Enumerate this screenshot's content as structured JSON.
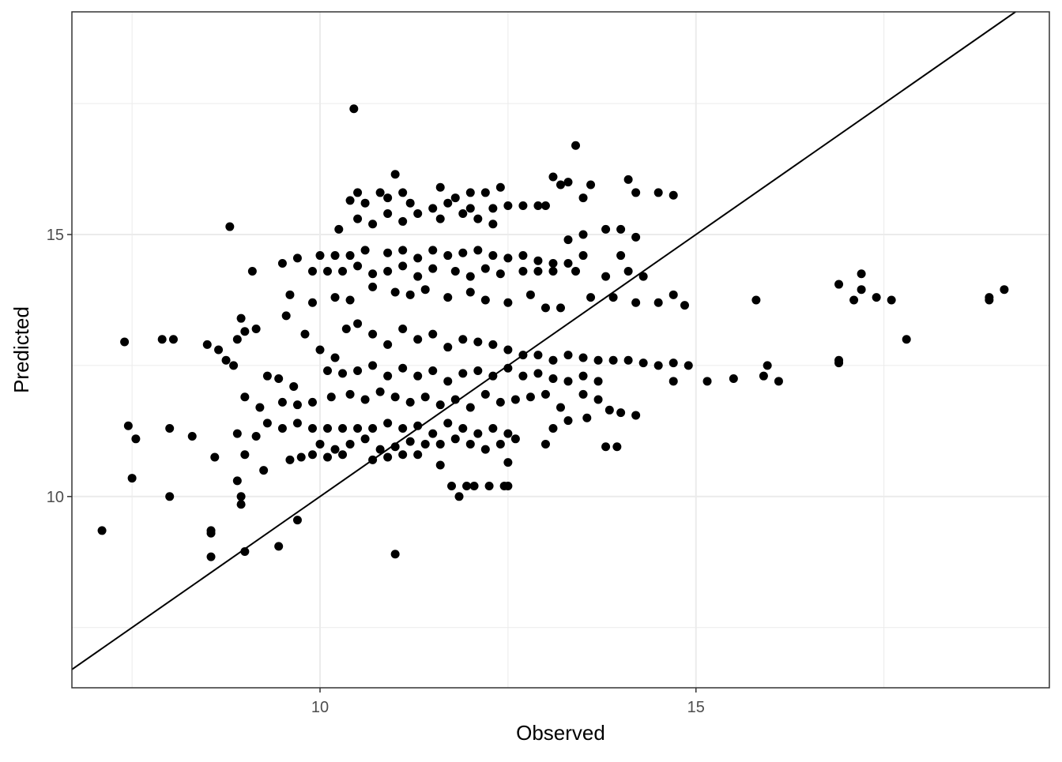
{
  "chart_data": {
    "type": "scatter",
    "xlabel": "Observed",
    "ylabel": "Predicted",
    "xlim": [
      6.7,
      19.7
    ],
    "ylim": [
      6.35,
      19.25
    ],
    "x_ticks": [
      10,
      15
    ],
    "y_ticks": [
      10,
      15
    ],
    "x_minor_gridlines": [
      7.5,
      12.5,
      17.5
    ],
    "y_minor_gridlines": [
      7.5,
      12.5,
      17.5
    ],
    "grid": true,
    "reference_line": {
      "type": "identity",
      "slope": 1,
      "intercept": 0
    },
    "colors": {
      "points": "#000000",
      "grid": "#ebebeb",
      "panel_border": "#333333",
      "axis_text": "#4d4d4d",
      "title_text": "#000000"
    },
    "x_tick_labels": [
      "10",
      "15"
    ],
    "y_tick_labels": [
      "10",
      "15"
    ],
    "points": [
      [
        10.45,
        17.4
      ],
      [
        13.4,
        16.7
      ],
      [
        11.0,
        16.15
      ],
      [
        13.1,
        16.1
      ],
      [
        13.2,
        15.95
      ],
      [
        13.3,
        16.0
      ],
      [
        13.6,
        15.95
      ],
      [
        14.1,
        16.05
      ],
      [
        10.5,
        15.8
      ],
      [
        10.8,
        15.8
      ],
      [
        11.1,
        15.8
      ],
      [
        11.6,
        15.9
      ],
      [
        11.8,
        15.7
      ],
      [
        12.0,
        15.8
      ],
      [
        12.2,
        15.8
      ],
      [
        12.4,
        15.9
      ],
      [
        13.5,
        15.7
      ],
      [
        14.2,
        15.8
      ],
      [
        14.5,
        15.8
      ],
      [
        14.7,
        15.75
      ],
      [
        10.4,
        15.65
      ],
      [
        10.6,
        15.6
      ],
      [
        10.9,
        15.7
      ],
      [
        11.2,
        15.6
      ],
      [
        11.5,
        15.5
      ],
      [
        11.7,
        15.6
      ],
      [
        12.0,
        15.5
      ],
      [
        12.3,
        15.5
      ],
      [
        12.5,
        15.55
      ],
      [
        12.7,
        15.55
      ],
      [
        12.9,
        15.55
      ],
      [
        13.0,
        15.55
      ],
      [
        8.8,
        15.15
      ],
      [
        10.25,
        15.1
      ],
      [
        10.5,
        15.3
      ],
      [
        10.7,
        15.2
      ],
      [
        10.9,
        15.4
      ],
      [
        11.1,
        15.25
      ],
      [
        11.3,
        15.4
      ],
      [
        11.6,
        15.3
      ],
      [
        11.9,
        15.4
      ],
      [
        12.1,
        15.3
      ],
      [
        12.3,
        15.2
      ],
      [
        13.3,
        14.9
      ],
      [
        13.5,
        15.0
      ],
      [
        13.8,
        15.1
      ],
      [
        14.0,
        15.1
      ],
      [
        14.2,
        14.95
      ],
      [
        10.0,
        14.6
      ],
      [
        10.2,
        14.6
      ],
      [
        10.4,
        14.6
      ],
      [
        10.6,
        14.7
      ],
      [
        10.9,
        14.65
      ],
      [
        11.1,
        14.7
      ],
      [
        11.3,
        14.55
      ],
      [
        11.5,
        14.7
      ],
      [
        11.7,
        14.6
      ],
      [
        11.9,
        14.65
      ],
      [
        12.1,
        14.7
      ],
      [
        12.3,
        14.6
      ],
      [
        12.5,
        14.55
      ],
      [
        12.7,
        14.6
      ],
      [
        12.9,
        14.5
      ],
      [
        13.1,
        14.45
      ],
      [
        13.3,
        14.45
      ],
      [
        13.5,
        14.6
      ],
      [
        14.0,
        14.6
      ],
      [
        9.5,
        14.45
      ],
      [
        9.7,
        14.55
      ],
      [
        9.9,
        14.3
      ],
      [
        10.1,
        14.3
      ],
      [
        10.3,
        14.3
      ],
      [
        10.5,
        14.4
      ],
      [
        10.7,
        14.25
      ],
      [
        10.9,
        14.3
      ],
      [
        11.1,
        14.4
      ],
      [
        11.3,
        14.2
      ],
      [
        11.5,
        14.35
      ],
      [
        11.8,
        14.3
      ],
      [
        12.0,
        14.2
      ],
      [
        12.2,
        14.35
      ],
      [
        12.4,
        14.25
      ],
      [
        12.7,
        14.3
      ],
      [
        12.9,
        14.3
      ],
      [
        13.1,
        14.3
      ],
      [
        13.4,
        14.3
      ],
      [
        13.8,
        14.2
      ],
      [
        14.1,
        14.3
      ],
      [
        14.3,
        14.2
      ],
      [
        9.1,
        14.3
      ],
      [
        9.6,
        13.85
      ],
      [
        9.9,
        13.7
      ],
      [
        10.2,
        13.8
      ],
      [
        10.4,
        13.75
      ],
      [
        10.7,
        14.0
      ],
      [
        11.0,
        13.9
      ],
      [
        11.2,
        13.85
      ],
      [
        11.4,
        13.95
      ],
      [
        11.7,
        13.8
      ],
      [
        12.0,
        13.9
      ],
      [
        12.2,
        13.75
      ],
      [
        12.5,
        13.7
      ],
      [
        12.8,
        13.85
      ],
      [
        13.0,
        13.6
      ],
      [
        13.2,
        13.6
      ],
      [
        13.6,
        13.8
      ],
      [
        13.9,
        13.8
      ],
      [
        14.2,
        13.7
      ],
      [
        14.5,
        13.7
      ],
      [
        14.7,
        13.85
      ],
      [
        14.85,
        13.65
      ],
      [
        15.8,
        13.75
      ],
      [
        16.9,
        14.05
      ],
      [
        17.1,
        13.75
      ],
      [
        17.2,
        14.25
      ],
      [
        17.2,
        13.95
      ],
      [
        17.4,
        13.8
      ],
      [
        17.6,
        13.75
      ],
      [
        18.9,
        13.75
      ],
      [
        18.9,
        13.8
      ],
      [
        19.1,
        13.95
      ],
      [
        17.8,
        13.0
      ],
      [
        7.4,
        12.95
      ],
      [
        7.9,
        13.0
      ],
      [
        8.05,
        13.0
      ],
      [
        8.5,
        12.9
      ],
      [
        8.65,
        12.8
      ],
      [
        8.75,
        12.6
      ],
      [
        8.9,
        13.0
      ],
      [
        9.0,
        13.15
      ],
      [
        8.95,
        13.4
      ],
      [
        9.15,
        13.2
      ],
      [
        9.55,
        13.45
      ],
      [
        8.85,
        12.5
      ],
      [
        9.8,
        13.1
      ],
      [
        10.0,
        12.8
      ],
      [
        10.2,
        12.65
      ],
      [
        10.35,
        13.2
      ],
      [
        10.5,
        13.3
      ],
      [
        10.7,
        13.1
      ],
      [
        10.9,
        12.9
      ],
      [
        11.1,
        13.2
      ],
      [
        11.3,
        13.0
      ],
      [
        11.5,
        13.1
      ],
      [
        11.7,
        12.85
      ],
      [
        11.9,
        13.0
      ],
      [
        12.1,
        12.95
      ],
      [
        12.3,
        12.9
      ],
      [
        12.5,
        12.8
      ],
      [
        12.7,
        12.7
      ],
      [
        12.9,
        12.7
      ],
      [
        13.1,
        12.6
      ],
      [
        13.3,
        12.7
      ],
      [
        13.5,
        12.65
      ],
      [
        13.7,
        12.6
      ],
      [
        13.9,
        12.6
      ],
      [
        14.1,
        12.6
      ],
      [
        14.3,
        12.55
      ],
      [
        14.5,
        12.5
      ],
      [
        14.7,
        12.55
      ],
      [
        14.9,
        12.5
      ],
      [
        10.1,
        12.4
      ],
      [
        10.3,
        12.35
      ],
      [
        10.5,
        12.4
      ],
      [
        10.7,
        12.5
      ],
      [
        10.9,
        12.3
      ],
      [
        11.1,
        12.45
      ],
      [
        11.3,
        12.3
      ],
      [
        11.5,
        12.4
      ],
      [
        11.7,
        12.2
      ],
      [
        11.9,
        12.35
      ],
      [
        12.1,
        12.4
      ],
      [
        12.3,
        12.3
      ],
      [
        12.5,
        12.45
      ],
      [
        12.7,
        12.3
      ],
      [
        12.9,
        12.35
      ],
      [
        13.1,
        12.25
      ],
      [
        13.3,
        12.2
      ],
      [
        13.5,
        12.3
      ],
      [
        13.7,
        12.2
      ],
      [
        14.7,
        12.2
      ],
      [
        15.15,
        12.2
      ],
      [
        15.5,
        12.25
      ],
      [
        15.9,
        12.3
      ],
      [
        15.95,
        12.5
      ],
      [
        16.1,
        12.2
      ],
      [
        16.9,
        12.55
      ],
      [
        16.9,
        12.6
      ],
      [
        9.3,
        12.3
      ],
      [
        9.45,
        12.25
      ],
      [
        9.65,
        12.1
      ],
      [
        9.2,
        11.7
      ],
      [
        9.0,
        11.9
      ],
      [
        9.5,
        11.8
      ],
      [
        9.7,
        11.75
      ],
      [
        9.9,
        11.8
      ],
      [
        10.15,
        11.9
      ],
      [
        10.4,
        11.95
      ],
      [
        10.6,
        11.85
      ],
      [
        10.8,
        12.0
      ],
      [
        11.0,
        11.9
      ],
      [
        11.2,
        11.8
      ],
      [
        11.4,
        11.9
      ],
      [
        11.6,
        11.75
      ],
      [
        11.8,
        11.85
      ],
      [
        12.0,
        11.7
      ],
      [
        12.2,
        11.95
      ],
      [
        12.4,
        11.8
      ],
      [
        12.6,
        11.85
      ],
      [
        12.8,
        11.9
      ],
      [
        13.0,
        11.95
      ],
      [
        13.2,
        11.7
      ],
      [
        13.5,
        11.95
      ],
      [
        13.7,
        11.85
      ],
      [
        9.3,
        11.4
      ],
      [
        9.5,
        11.3
      ],
      [
        9.7,
        11.4
      ],
      [
        9.9,
        11.3
      ],
      [
        10.1,
        11.3
      ],
      [
        10.3,
        11.3
      ],
      [
        10.5,
        11.3
      ],
      [
        10.7,
        11.3
      ],
      [
        10.9,
        11.4
      ],
      [
        11.1,
        11.3
      ],
      [
        11.3,
        11.35
      ],
      [
        11.5,
        11.2
      ],
      [
        11.7,
        11.4
      ],
      [
        11.9,
        11.3
      ],
      [
        12.1,
        11.2
      ],
      [
        12.3,
        11.3
      ],
      [
        12.5,
        11.2
      ],
      [
        13.3,
        11.45
      ],
      [
        13.1,
        11.3
      ],
      [
        13.85,
        11.65
      ],
      [
        14.0,
        11.6
      ],
      [
        14.2,
        11.55
      ],
      [
        13.55,
        11.5
      ],
      [
        8.0,
        11.3
      ],
      [
        7.45,
        11.35
      ],
      [
        7.55,
        11.1
      ],
      [
        8.3,
        11.15
      ],
      [
        8.6,
        10.75
      ],
      [
        8.9,
        11.2
      ],
      [
        9.15,
        11.15
      ],
      [
        9.0,
        10.8
      ],
      [
        10.0,
        11.0
      ],
      [
        10.2,
        10.9
      ],
      [
        10.4,
        11.0
      ],
      [
        10.6,
        11.1
      ],
      [
        10.8,
        10.9
      ],
      [
        11.0,
        10.95
      ],
      [
        11.2,
        11.05
      ],
      [
        11.4,
        11.0
      ],
      [
        11.6,
        11.0
      ],
      [
        11.8,
        11.1
      ],
      [
        12.0,
        11.0
      ],
      [
        12.2,
        10.9
      ],
      [
        12.4,
        11.0
      ],
      [
        12.6,
        11.1
      ],
      [
        13.0,
        11.0
      ],
      [
        13.8,
        10.95
      ],
      [
        13.95,
        10.95
      ],
      [
        9.6,
        10.7
      ],
      [
        9.75,
        10.75
      ],
      [
        9.9,
        10.8
      ],
      [
        10.1,
        10.75
      ],
      [
        10.3,
        10.8
      ],
      [
        10.7,
        10.7
      ],
      [
        10.9,
        10.75
      ],
      [
        11.1,
        10.8
      ],
      [
        11.3,
        10.8
      ],
      [
        11.6,
        10.6
      ],
      [
        12.5,
        10.65
      ],
      [
        9.25,
        10.5
      ],
      [
        7.5,
        10.35
      ],
      [
        8.0,
        10.0
      ],
      [
        8.9,
        10.3
      ],
      [
        8.95,
        10.0
      ],
      [
        8.95,
        9.85
      ],
      [
        11.75,
        10.2
      ],
      [
        11.95,
        10.2
      ],
      [
        12.05,
        10.2
      ],
      [
        12.25,
        10.2
      ],
      [
        12.45,
        10.2
      ],
      [
        12.5,
        10.2
      ],
      [
        11.85,
        10.0
      ],
      [
        7.1,
        9.35
      ],
      [
        8.55,
        9.35
      ],
      [
        8.55,
        9.3
      ],
      [
        9.7,
        9.55
      ],
      [
        8.55,
        8.85
      ],
      [
        9.0,
        8.95
      ],
      [
        9.45,
        9.05
      ],
      [
        11.0,
        8.9
      ]
    ]
  }
}
